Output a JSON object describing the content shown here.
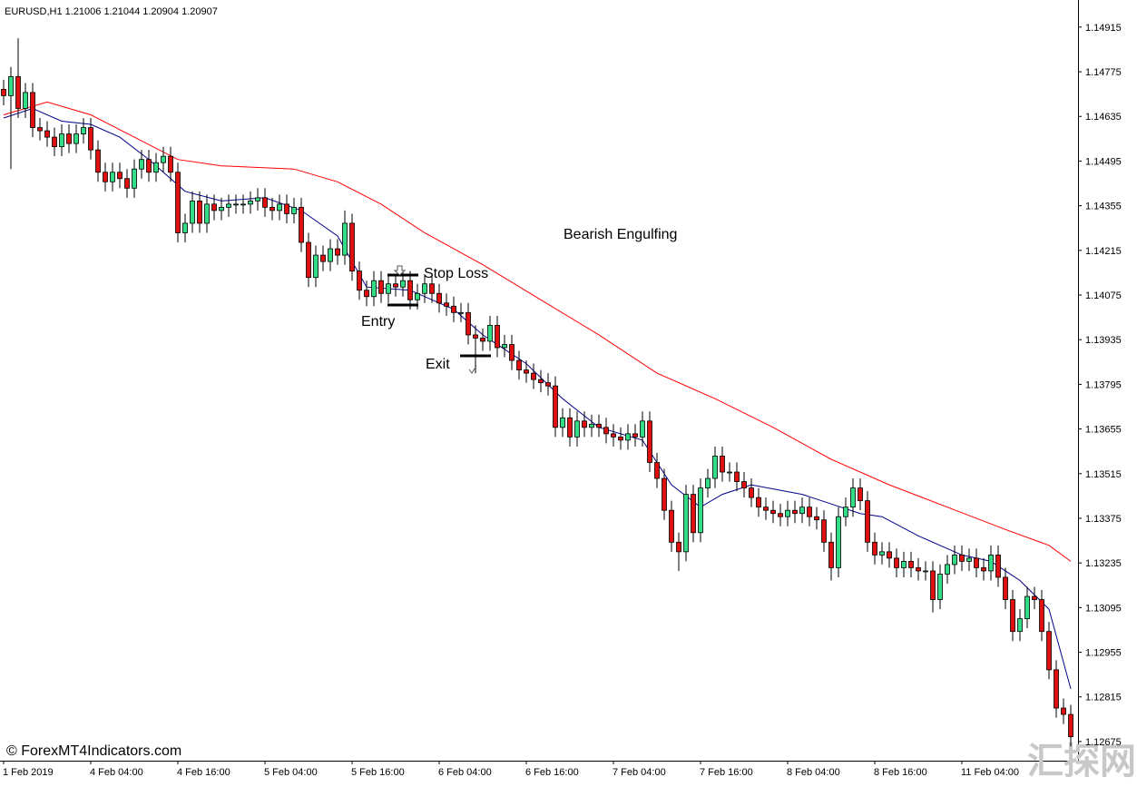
{
  "chart_data": {
    "type": "candlestick",
    "header": "EURUSD,H1  1.21006 1.21044 1.20904 1.20907",
    "annotations": {
      "pattern": "Bearish Engulfing",
      "stop_loss": "Stop Loss",
      "entry": "Entry",
      "exit": "Exit"
    },
    "copyright": "© ForexMT4Indicators.com",
    "watermark": "汇探网",
    "up_color": "#33dd88",
    "down_color": "#e01010",
    "xlim": [
      -0.5,
      148
    ],
    "ylim": [
      1.12615,
      1.15
    ],
    "xticks": [
      {
        "value": 0,
        "label": "1 Feb 2019"
      },
      {
        "value": 12,
        "label": "4 Feb 04:00"
      },
      {
        "value": 24,
        "label": "4 Feb 16:00"
      },
      {
        "value": 36,
        "label": "5 Feb 04:00"
      },
      {
        "value": 48,
        "label": "5 Feb 16:00"
      },
      {
        "value": 60,
        "label": "6 Feb 04:00"
      },
      {
        "value": 72,
        "label": "6 Feb 16:00"
      },
      {
        "value": 84,
        "label": "7 Feb 04:00"
      },
      {
        "value": 96,
        "label": "7 Feb 16:00"
      },
      {
        "value": 108,
        "label": "8 Feb 04:00"
      },
      {
        "value": 120,
        "label": "8 Feb 16:00"
      },
      {
        "value": 132,
        "label": "11 Feb 04:00"
      }
    ],
    "yticks": [
      1.14915,
      1.14775,
      1.14635,
      1.14495,
      1.14355,
      1.14215,
      1.14075,
      1.13935,
      1.13795,
      1.13655,
      1.13515,
      1.13375,
      1.13235,
      1.13095,
      1.12955,
      1.12815,
      1.12675
    ],
    "open": [
      1.1472,
      1.147,
      1.1476,
      1.1466,
      1.1471,
      1.146,
      1.1459,
      1.1457,
      1.1454,
      1.1458,
      1.1455,
      1.1458,
      1.146,
      1.1453,
      1.1446,
      1.1443,
      1.1446,
      1.1444,
      1.1441,
      1.1447,
      1.145,
      1.1446,
      1.1449,
      1.1451,
      1.1446,
      1.1427,
      1.143,
      1.1437,
      1.143,
      1.1436,
      1.1434,
      1.1435,
      1.1436,
      1.1436,
      1.1436,
      1.1437,
      1.1438,
      1.1435,
      1.1434,
      1.1436,
      1.1433,
      1.1435,
      1.1424,
      1.1413,
      1.142,
      1.1418,
      1.1422,
      1.142,
      1.143,
      1.1415,
      1.1409,
      1.1407,
      1.1412,
      1.1408,
      1.1411,
      1.141,
      1.1412,
      1.1406,
      1.1408,
      1.1411,
      1.1408,
      1.1405,
      1.1404,
      1.1402,
      1.1402,
      1.1395,
      1.1394,
      1.1393,
      1.1398,
      1.1391,
      1.1392,
      1.1387,
      1.1384,
      1.1383,
      1.1381,
      1.138,
      1.1379,
      1.1366,
      1.1369,
      1.1363,
      1.1368,
      1.1366,
      1.1367,
      1.1366,
      1.1364,
      1.1363,
      1.1362,
      1.1364,
      1.1363,
      1.1368,
      1.1355,
      1.135,
      1.134,
      1.133,
      1.1327,
      1.1345,
      1.1333,
      1.1347,
      1.135,
      1.1357,
      1.1352,
      1.1352,
      1.1349,
      1.1347,
      1.1344,
      1.1341,
      1.134,
      1.1339,
      1.1338,
      1.134,
      1.1339,
      1.1341,
      1.1338,
      1.1337,
      1.133,
      1.1322,
      1.1338,
      1.1341,
      1.1347,
      1.1343,
      1.133,
      1.1326,
      1.1327,
      1.1325,
      1.1322,
      1.1324,
      1.1322,
      1.1321,
      1.1321,
      1.1312,
      1.132,
      1.1323,
      1.1326,
      1.1324,
      1.1325,
      1.1322,
      1.1321,
      1.1326,
      1.1319,
      1.1312,
      1.1302,
      1.1306,
      1.1313,
      1.1312,
      1.1302,
      1.129,
      1.1278,
      1.1276
    ],
    "high": [
      1.1475,
      1.1479,
      1.1488,
      1.1474,
      1.1474,
      1.1463,
      1.1462,
      1.146,
      1.1461,
      1.1461,
      1.1461,
      1.1463,
      1.1463,
      1.1456,
      1.1449,
      1.1449,
      1.1449,
      1.1447,
      1.145,
      1.1453,
      1.1453,
      1.1452,
      1.1454,
      1.1454,
      1.1449,
      1.1433,
      1.144,
      1.144,
      1.1439,
      1.1439,
      1.1438,
      1.1439,
      1.1439,
      1.1439,
      1.144,
      1.1441,
      1.1441,
      1.1438,
      1.1439,
      1.1439,
      1.1438,
      1.1438,
      1.1427,
      1.1423,
      1.1423,
      1.1425,
      1.1425,
      1.1434,
      1.1433,
      1.1418,
      1.1412,
      1.1415,
      1.1415,
      1.1414,
      1.1414,
      1.1415,
      1.1415,
      1.1411,
      1.1414,
      1.1414,
      1.1411,
      1.1408,
      1.1407,
      1.1405,
      1.1405,
      1.1398,
      1.1397,
      1.1401,
      1.1401,
      1.1395,
      1.1395,
      1.139,
      1.1387,
      1.1386,
      1.1384,
      1.1383,
      1.1382,
      1.1372,
      1.1372,
      1.1371,
      1.1371,
      1.137,
      1.137,
      1.1369,
      1.1367,
      1.1366,
      1.1367,
      1.1367,
      1.1371,
      1.1371,
      1.1358,
      1.1353,
      1.1343,
      1.1333,
      1.1348,
      1.1348,
      1.135,
      1.1353,
      1.136,
      1.136,
      1.1355,
      1.1355,
      1.1352,
      1.135,
      1.1347,
      1.1344,
      1.1343,
      1.1342,
      1.1343,
      1.1343,
      1.1344,
      1.1344,
      1.1341,
      1.134,
      1.1333,
      1.1341,
      1.1344,
      1.135,
      1.135,
      1.1346,
      1.1333,
      1.133,
      1.133,
      1.1328,
      1.1327,
      1.1327,
      1.1325,
      1.1324,
      1.1324,
      1.1323,
      1.1326,
      1.1329,
      1.1329,
      1.1328,
      1.1328,
      1.1325,
      1.1329,
      1.1329,
      1.1322,
      1.1315,
      1.1309,
      1.1316,
      1.1316,
      1.1315,
      1.1305,
      1.1293,
      1.1281,
      1.1279
    ],
    "low": [
      1.1467,
      1.1447,
      1.1463,
      1.1463,
      1.1457,
      1.1456,
      1.1454,
      1.1451,
      1.1451,
      1.1452,
      1.1452,
      1.1455,
      1.145,
      1.1443,
      1.144,
      1.144,
      1.1441,
      1.1438,
      1.1438,
      1.1444,
      1.1443,
      1.1443,
      1.1446,
      1.1443,
      1.1424,
      1.1424,
      1.1427,
      1.1427,
      1.1427,
      1.1431,
      1.1431,
      1.1432,
      1.1433,
      1.1433,
      1.1433,
      1.1434,
      1.1432,
      1.1431,
      1.1431,
      1.143,
      1.143,
      1.1421,
      1.141,
      1.141,
      1.1415,
      1.1415,
      1.1417,
      1.1417,
      1.1412,
      1.1406,
      1.1404,
      1.1404,
      1.1405,
      1.1405,
      1.1407,
      1.1407,
      1.1403,
      1.1403,
      1.1405,
      1.1405,
      1.1402,
      1.1401,
      1.1399,
      1.1399,
      1.1392,
      1.1383,
      1.139,
      1.139,
      1.1388,
      1.1388,
      1.1384,
      1.1381,
      1.138,
      1.1378,
      1.1377,
      1.1376,
      1.1363,
      1.1363,
      1.136,
      1.136,
      1.1363,
      1.1363,
      1.1363,
      1.1361,
      1.136,
      1.1359,
      1.1359,
      1.136,
      1.136,
      1.1352,
      1.1347,
      1.1337,
      1.1327,
      1.1321,
      1.1324,
      1.133,
      1.133,
      1.1344,
      1.1347,
      1.1349,
      1.1349,
      1.1346,
      1.1344,
      1.1341,
      1.1338,
      1.1337,
      1.1336,
      1.1335,
      1.1335,
      1.1336,
      1.1336,
      1.1335,
      1.1334,
      1.1327,
      1.1318,
      1.1319,
      1.1335,
      1.1338,
      1.134,
      1.1327,
      1.1323,
      1.1323,
      1.1322,
      1.1319,
      1.1319,
      1.1319,
      1.1318,
      1.1318,
      1.1308,
      1.1309,
      1.1317,
      1.132,
      1.1321,
      1.1321,
      1.1319,
      1.1318,
      1.1318,
      1.1316,
      1.1309,
      1.1299,
      1.1299,
      1.1303,
      1.1309,
      1.1299,
      1.1287,
      1.1275,
      1.1273,
      1.1266
    ],
    "close": [
      1.147,
      1.1476,
      1.1466,
      1.1471,
      1.146,
      1.1459,
      1.1457,
      1.1454,
      1.1458,
      1.1455,
      1.1458,
      1.146,
      1.1453,
      1.1446,
      1.1443,
      1.1446,
      1.1444,
      1.1441,
      1.1447,
      1.145,
      1.1446,
      1.1449,
      1.1451,
      1.1446,
      1.1427,
      1.143,
      1.1437,
      1.143,
      1.1436,
      1.1434,
      1.1435,
      1.1436,
      1.1436,
      1.1436,
      1.1437,
      1.1438,
      1.1435,
      1.1434,
      1.1436,
      1.1433,
      1.1435,
      1.1424,
      1.1413,
      1.142,
      1.1418,
      1.1422,
      1.142,
      1.143,
      1.1415,
      1.1409,
      1.1407,
      1.1412,
      1.1408,
      1.1411,
      1.141,
      1.1412,
      1.1406,
      1.1408,
      1.1411,
      1.1408,
      1.1405,
      1.1404,
      1.1402,
      1.1402,
      1.1395,
      1.1394,
      1.1393,
      1.1398,
      1.1391,
      1.1392,
      1.1387,
      1.1384,
      1.1383,
      1.1381,
      1.138,
      1.1379,
      1.1366,
      1.1369,
      1.1363,
      1.1368,
      1.1366,
      1.1367,
      1.1366,
      1.1364,
      1.1363,
      1.1362,
      1.1364,
      1.1363,
      1.1368,
      1.1355,
      1.135,
      1.134,
      1.133,
      1.1327,
      1.1345,
      1.1333,
      1.1347,
      1.135,
      1.1357,
      1.1352,
      1.1352,
      1.1349,
      1.1347,
      1.1344,
      1.1341,
      1.134,
      1.1339,
      1.1338,
      1.134,
      1.1339,
      1.1341,
      1.1338,
      1.1337,
      1.133,
      1.1322,
      1.1338,
      1.1341,
      1.1347,
      1.1343,
      1.133,
      1.1326,
      1.1327,
      1.1325,
      1.1322,
      1.1324,
      1.1322,
      1.1321,
      1.1321,
      1.1312,
      1.132,
      1.1323,
      1.1326,
      1.1324,
      1.1325,
      1.1322,
      1.1321,
      1.1326,
      1.1319,
      1.1312,
      1.1302,
      1.1306,
      1.1313,
      1.1312,
      1.1302,
      1.129,
      1.1278,
      1.1276,
      1.1269
    ],
    "lines": [
      {
        "color": "#00008b",
        "x": [
          0,
          4,
          8,
          12,
          16,
          20,
          25,
          30,
          36,
          41,
          46,
          50,
          56,
          62,
          66,
          72,
          77,
          82,
          88,
          92,
          96,
          99,
          103,
          110,
          114,
          118,
          121,
          126,
          132,
          136,
          140,
          144,
          147
        ],
        "values": [
          1.1463,
          1.1466,
          1.1462,
          1.1461,
          1.1457,
          1.145,
          1.144,
          1.1437,
          1.1438,
          1.1434,
          1.1426,
          1.141,
          1.1409,
          1.1403,
          1.1395,
          1.1386,
          1.1375,
          1.1366,
          1.1362,
          1.1348,
          1.1341,
          1.1345,
          1.1348,
          1.1345,
          1.1342,
          1.1339,
          1.1338,
          1.1332,
          1.1326,
          1.1324,
          1.1318,
          1.1309,
          1.1284
        ]
      },
      {
        "color": "#ff0000",
        "x": [
          0,
          6,
          12,
          18,
          24,
          30,
          40,
          46,
          52,
          58,
          66,
          74,
          82,
          90,
          98,
          106,
          114,
          122,
          130,
          138,
          144,
          147
        ],
        "values": [
          1.1464,
          1.1468,
          1.1464,
          1.1457,
          1.145,
          1.1448,
          1.1447,
          1.1443,
          1.1436,
          1.1427,
          1.1417,
          1.1406,
          1.1395,
          1.1383,
          1.1375,
          1.1366,
          1.1356,
          1.1348,
          1.1341,
          1.1334,
          1.1329,
          1.1324
        ]
      }
    ]
  }
}
